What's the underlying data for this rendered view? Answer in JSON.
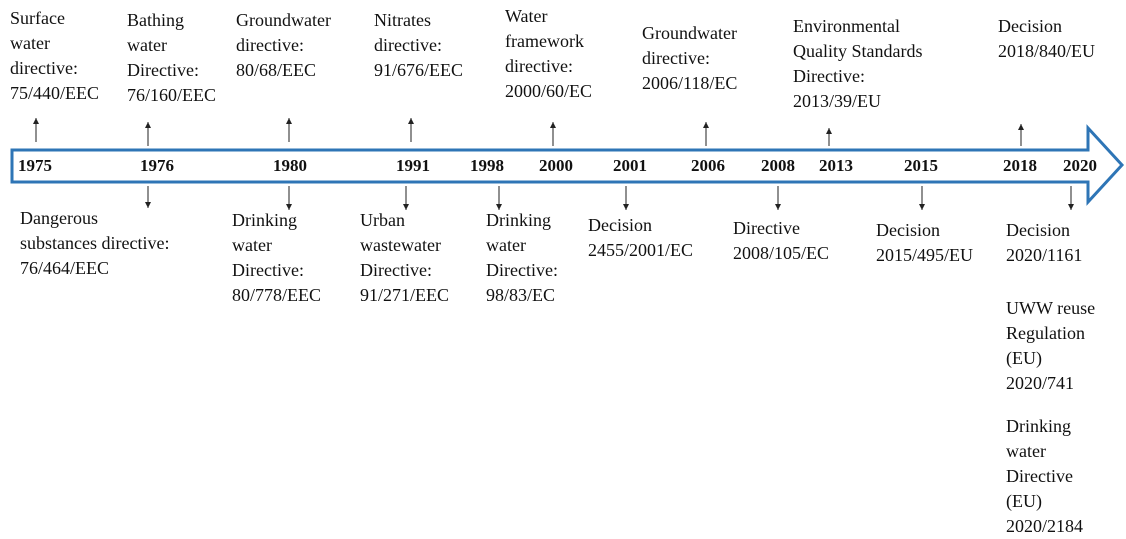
{
  "years": [
    "1975",
    "1976",
    "1980",
    "1991",
    "1998",
    "2000",
    "2001",
    "2006",
    "2008",
    "2013",
    "2015",
    "2018",
    "2020"
  ],
  "above": [
    {
      "lines": [
        "Surface",
        "water",
        "directive:",
        "75/440/EEC"
      ]
    },
    {
      "lines": [
        "Bathing",
        "water",
        "Directive:",
        "76/160/EEC"
      ]
    },
    {
      "lines": [
        "Groundwater",
        "directive:",
        "80/68/EEC"
      ]
    },
    {
      "lines": [
        "Nitrates",
        "directive:",
        "91/676/EEC"
      ]
    },
    {
      "lines": [
        "Water",
        "framework",
        "directive:",
        "2000/60/EC"
      ]
    },
    {
      "lines": [
        "Groundwater",
        "directive:",
        "2006/118/EC"
      ]
    },
    {
      "lines": [
        "Environmental",
        "Quality Standards",
        "Directive:",
        "2013/39/EU"
      ]
    },
    {
      "lines": [
        "Decision",
        "2018/840/EU"
      ]
    }
  ],
  "below": [
    {
      "lines": [
        "Dangerous",
        "substances directive:",
        "76/464/EEC"
      ]
    },
    {
      "lines": [
        "Drinking",
        "water",
        "Directive:",
        "80/778/EEC"
      ]
    },
    {
      "lines": [
        "Urban",
        "wastewater",
        "Directive:",
        "91/271/EEC"
      ]
    },
    {
      "lines": [
        "Drinking",
        "water",
        "Directive:",
        "98/83/EC"
      ]
    },
    {
      "lines": [
        "Decision",
        "2455/2001/EC"
      ]
    },
    {
      "lines": [
        "Directive",
        "2008/105/EC"
      ]
    },
    {
      "lines": [
        "Decision",
        "2015/495/EU"
      ]
    },
    {
      "lines": [
        "Decision",
        "2020/1161"
      ]
    },
    {
      "lines": [
        "UWW reuse",
        "Regulation",
        "(EU)",
        "2020/741"
      ]
    },
    {
      "lines": [
        "Drinking",
        "water",
        "Directive",
        "(EU)",
        "2020/2184"
      ]
    }
  ]
}
